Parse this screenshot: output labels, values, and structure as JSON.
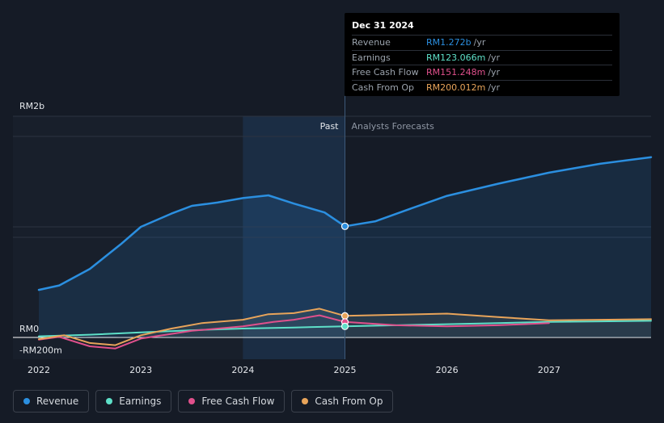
{
  "tooltip": {
    "date": "Dec 31 2024",
    "rows": [
      {
        "label": "Revenue",
        "value": "RM1.272b",
        "unit": "/yr",
        "color": "#2b8fe0"
      },
      {
        "label": "Earnings",
        "value": "RM123.066m",
        "unit": "/yr",
        "color": "#5ee0c8"
      },
      {
        "label": "Free Cash Flow",
        "value": "RM151.248m",
        "unit": "/yr",
        "color": "#e0508c"
      },
      {
        "label": "Cash From Op",
        "value": "RM200.012m",
        "unit": "/yr",
        "color": "#e8a45a"
      }
    ]
  },
  "chart_data": {
    "type": "line",
    "ylabels": [
      "RM2b",
      "RM0",
      "-RM200m"
    ],
    "yticks": [
      2000,
      0,
      -200
    ],
    "ylim": [
      -200,
      2200
    ],
    "xlim": [
      2022.0,
      2028.0
    ],
    "xtick_labels": [
      "2022",
      "2023",
      "2024",
      "2025",
      "2026",
      "2027"
    ],
    "xtick_values": [
      2022,
      2023,
      2024,
      2025,
      2026,
      2027
    ],
    "split_labels": {
      "past": "Past",
      "forecast": "Analysts Forecasts"
    },
    "split_x": 2025.0,
    "highlight_start": 2024.0,
    "series": [
      {
        "name": "Revenue",
        "color": "#2b8fe0",
        "fill": true,
        "points": [
          [
            2022.0,
            430
          ],
          [
            2022.2,
            470
          ],
          [
            2022.5,
            620
          ],
          [
            2022.8,
            840
          ],
          [
            2023.0,
            1000
          ],
          [
            2023.3,
            1120
          ],
          [
            2023.5,
            1190
          ],
          [
            2023.75,
            1220
          ],
          [
            2024.0,
            1260
          ],
          [
            2024.25,
            1285
          ],
          [
            2024.5,
            1210
          ],
          [
            2024.8,
            1130
          ],
          [
            2025.0,
            1005
          ],
          [
            2025.3,
            1050
          ],
          [
            2025.6,
            1150
          ],
          [
            2026.0,
            1280
          ],
          [
            2026.5,
            1390
          ],
          [
            2027.0,
            1490
          ],
          [
            2027.5,
            1570
          ],
          [
            2028.0,
            1630
          ]
        ]
      },
      {
        "name": "Earnings",
        "color": "#5ee0c8",
        "points": [
          [
            2022.0,
            10
          ],
          [
            2022.5,
            25
          ],
          [
            2023.0,
            45
          ],
          [
            2023.5,
            65
          ],
          [
            2024.0,
            80
          ],
          [
            2024.5,
            90
          ],
          [
            2025.0,
            100
          ],
          [
            2025.5,
            110
          ],
          [
            2026.0,
            120
          ],
          [
            2026.5,
            130
          ],
          [
            2027.0,
            140
          ],
          [
            2027.5,
            145
          ],
          [
            2028.0,
            150
          ]
        ]
      },
      {
        "name": "Free Cash Flow",
        "color": "#e0508c",
        "points": [
          [
            2022.0,
            -20
          ],
          [
            2022.2,
            5
          ],
          [
            2022.5,
            -80
          ],
          [
            2022.75,
            -100
          ],
          [
            2023.0,
            -10
          ],
          [
            2023.5,
            60
          ],
          [
            2024.0,
            100
          ],
          [
            2024.3,
            140
          ],
          [
            2024.5,
            160
          ],
          [
            2024.75,
            200
          ],
          [
            2025.0,
            140
          ],
          [
            2025.5,
            110
          ],
          [
            2026.0,
            100
          ],
          [
            2026.5,
            110
          ],
          [
            2027.0,
            130
          ]
        ]
      },
      {
        "name": "Cash From Op",
        "color": "#e8a45a",
        "points": [
          [
            2022.0,
            -15
          ],
          [
            2022.25,
            20
          ],
          [
            2022.5,
            -50
          ],
          [
            2022.75,
            -70
          ],
          [
            2023.0,
            20
          ],
          [
            2023.3,
            80
          ],
          [
            2023.6,
            130
          ],
          [
            2024.0,
            160
          ],
          [
            2024.25,
            210
          ],
          [
            2024.5,
            220
          ],
          [
            2024.75,
            260
          ],
          [
            2025.0,
            195
          ],
          [
            2025.5,
            205
          ],
          [
            2026.0,
            215
          ],
          [
            2026.5,
            185
          ],
          [
            2027.0,
            155
          ],
          [
            2027.5,
            160
          ],
          [
            2028.0,
            165
          ]
        ]
      }
    ]
  },
  "legend": [
    {
      "label": "Revenue",
      "color": "#2b8fe0"
    },
    {
      "label": "Earnings",
      "color": "#5ee0c8"
    },
    {
      "label": "Free Cash Flow",
      "color": "#e0508c"
    },
    {
      "label": "Cash From Op",
      "color": "#e8a45a"
    }
  ]
}
